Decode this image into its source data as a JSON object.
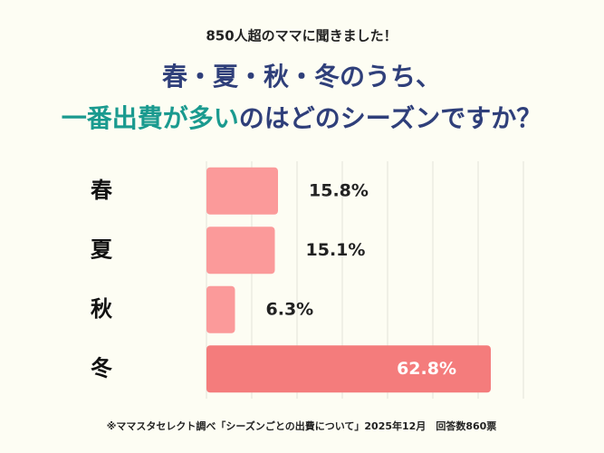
{
  "chart_data": {
    "type": "barh",
    "kicker": "850人超のママに聞きました！",
    "title_line1": "春・夏・秋・冬のうち、",
    "title_highlight": "一番出費が多い",
    "title_rest": "のはどのシーズンですか？",
    "categories": [
      "春",
      "夏",
      "秋",
      "冬"
    ],
    "values": [
      15.8,
      15.1,
      6.3,
      62.8
    ],
    "value_labels": [
      "15.8%",
      "15.1%",
      "6.3%",
      "62.8%"
    ],
    "colors": [
      "#fb9a9a",
      "#fb9a9a",
      "#fb9a9a",
      "#f47c7c"
    ],
    "xlim": [
      0,
      70
    ],
    "xticks": [
      0,
      10,
      20,
      30,
      40,
      50,
      60,
      70
    ],
    "grid": true,
    "footnote": "※ママスタセレクト調べ「シーズンごとの出費について」2025年12月　回答数860票"
  }
}
